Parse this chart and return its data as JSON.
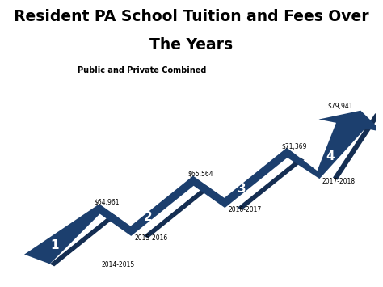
{
  "title_line1": "Resident PA School Tuition and Fees Over",
  "title_line2": "The Years",
  "subtitle": "Public and Private Combined",
  "background_color": "#ffffff",
  "arrow_color": "#1c3f6e",
  "arrow_color_dark": "#152e52",
  "title_fontsize": 13.5,
  "subtitle_fontsize": 7,
  "steps": [
    {
      "number": "1",
      "year": "2014-2015",
      "value": "$64,961"
    },
    {
      "number": "2",
      "year": "2015-2016",
      "value": "$65,564"
    },
    {
      "number": "3",
      "year": "2016-2017",
      "value": "$71,369"
    },
    {
      "number": "4",
      "year": "2017-2018",
      "value": "$79,941"
    }
  ]
}
